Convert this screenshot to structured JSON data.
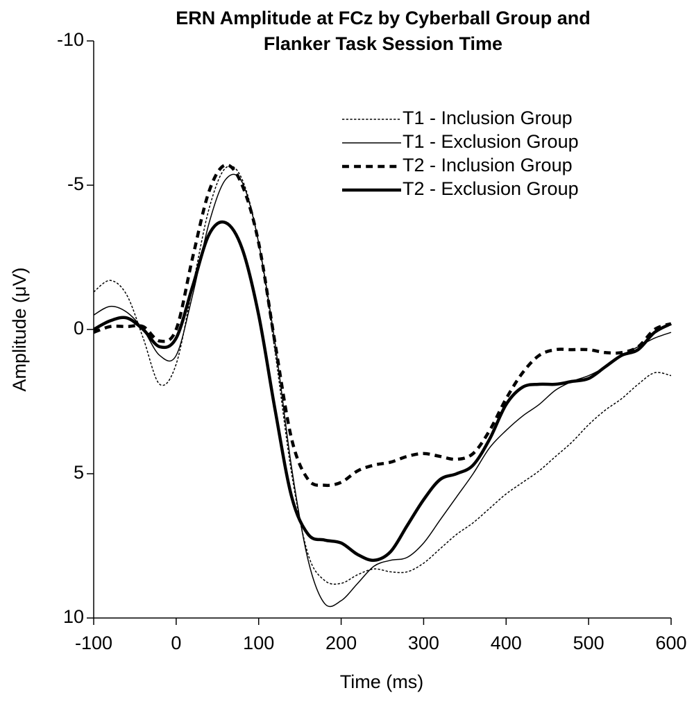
{
  "chart_data": {
    "type": "line",
    "title": "ERN Amplitude at FCz by Cyberball Group and Flanker Task Session Time",
    "x_label": "Time (ms)",
    "y_label": "Amplitude (μV)",
    "xlim": [
      -100,
      600
    ],
    "xticks": [
      -100,
      0,
      100,
      200,
      300,
      400,
      500,
      600
    ],
    "ylim": [
      10,
      -10
    ],
    "yticks": [
      -10,
      -5,
      0,
      5,
      10
    ],
    "grid": false,
    "legend": "top-right",
    "x": [
      -100,
      -80,
      -60,
      -40,
      -20,
      0,
      20,
      40,
      60,
      80,
      100,
      120,
      140,
      160,
      180,
      200,
      220,
      240,
      260,
      280,
      300,
      320,
      340,
      360,
      380,
      400,
      420,
      440,
      460,
      480,
      500,
      520,
      540,
      560,
      580,
      600
    ],
    "series": [
      {
        "name": "T1 - Inclusion Group",
        "color": "#000000",
        "dashed": true,
        "width": 1.5,
        "values": [
          -1.3,
          -1.7,
          -1.2,
          0.3,
          1.9,
          1.2,
          -1.5,
          -4.2,
          -5.6,
          -5.2,
          -3.0,
          0.8,
          5.0,
          7.8,
          8.7,
          8.8,
          8.5,
          8.3,
          8.4,
          8.4,
          8.1,
          7.6,
          7.1,
          6.7,
          6.2,
          5.7,
          5.3,
          4.9,
          4.4,
          3.9,
          3.3,
          2.8,
          2.4,
          1.9,
          1.5,
          1.6
        ]
      },
      {
        "name": "T1 - Exclusion Group",
        "color": "#000000",
        "dashed": false,
        "width": 1.5,
        "values": [
          -0.5,
          -0.8,
          -0.6,
          0.0,
          0.9,
          0.9,
          -1.2,
          -3.7,
          -5.2,
          -5.1,
          -3.0,
          0.5,
          4.8,
          8.0,
          9.5,
          9.4,
          8.8,
          8.2,
          8.0,
          7.9,
          7.4,
          6.6,
          5.8,
          5.0,
          4.1,
          3.5,
          3.0,
          2.6,
          2.1,
          1.8,
          1.6,
          1.3,
          0.9,
          0.6,
          0.3,
          0.1
        ]
      },
      {
        "name": "T2 - Inclusion Group",
        "color": "#000000",
        "dashed": true,
        "width": 4.5,
        "values": [
          0.1,
          -0.1,
          -0.1,
          -0.1,
          0.4,
          0.0,
          -2.5,
          -4.8,
          -5.7,
          -5.0,
          -3.0,
          0.5,
          3.8,
          5.2,
          5.4,
          5.3,
          4.9,
          4.7,
          4.6,
          4.4,
          4.3,
          4.4,
          4.5,
          4.3,
          3.5,
          2.4,
          1.5,
          0.9,
          0.7,
          0.7,
          0.7,
          0.8,
          0.8,
          0.6,
          0.0,
          -0.2
        ]
      },
      {
        "name": "T2 - Exclusion Group",
        "color": "#000000",
        "dashed": false,
        "width": 4.5,
        "values": [
          0.0,
          -0.3,
          -0.4,
          0.0,
          0.6,
          0.3,
          -1.5,
          -3.3,
          -3.7,
          -2.8,
          -0.5,
          2.8,
          5.8,
          7.1,
          7.3,
          7.4,
          7.8,
          8.0,
          7.7,
          6.8,
          5.9,
          5.2,
          5.0,
          4.7,
          3.8,
          2.6,
          2.0,
          1.9,
          1.9,
          1.8,
          1.7,
          1.3,
          0.9,
          0.7,
          0.1,
          -0.2
        ]
      }
    ]
  }
}
